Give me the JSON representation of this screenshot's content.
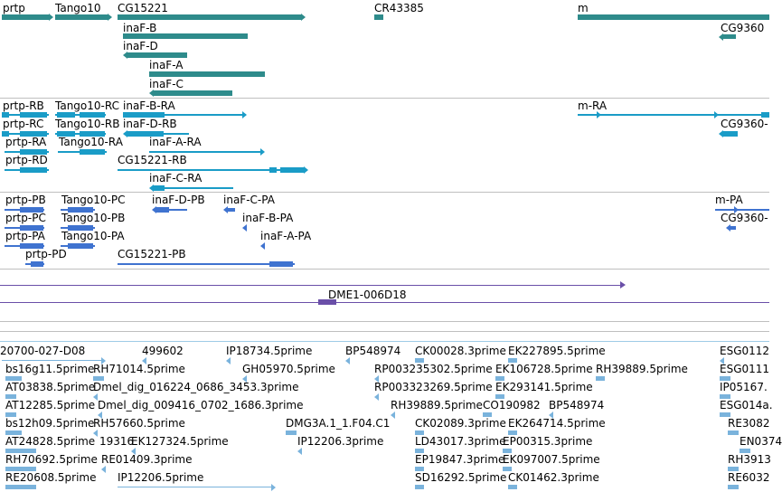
{
  "colors": {
    "gene": "#2e8b8b",
    "transcript": "#1a9cc7",
    "protein": "#3f73d0",
    "clone": "#6a4fa8",
    "est": "#7ab3dc"
  },
  "genes": [
    "prtp",
    "Tango10",
    "CG15221",
    "CR43385",
    "m",
    "inaF-B",
    "inaF-D",
    "inaF-A",
    "inaF-C",
    "CG9360"
  ],
  "transcripts": [
    "prtp-RB",
    "Tango10-RC",
    "inaF-B-RA",
    "m-RA",
    "prtp-RC",
    "Tango10-RB",
    "inaF-D-RB",
    "CG9360-",
    "prtp-RA",
    "Tango10-RA",
    "inaF-A-RA",
    "prtp-RD",
    "CG15221-RB",
    "inaF-C-RA"
  ],
  "proteins": [
    "prtp-PB",
    "Tango10-PC",
    "inaF-D-PB",
    "inaF-C-PA",
    "m-PA",
    "prtp-PC",
    "Tango10-PB",
    "inaF-B-PA",
    "CG9360-",
    "prtp-PA",
    "Tango10-PA",
    "inaF-A-PA",
    "prtp-PD",
    "CG15221-PB"
  ],
  "clone": "DME1-006D18",
  "ests": [
    "20700-027-D08",
    "499602",
    "IP18734.5prime",
    "BP548974",
    "CK00028.3prime",
    "EK227895.5prime",
    "ESG0112",
    "bs16g11.5prime",
    "RH71014.5prime",
    "GH05970.5prime",
    "RP003235302.5prime",
    "EK106728.5prime",
    "RH39889.5prime",
    "ESG0111",
    "AT03838.5prime",
    "Dmel_dig_016224_0686_3453.3prime",
    "RP003323269.5prime",
    "EK293141.5prime",
    "IP05167.",
    "AT12285.5prime",
    "Dmel_dig_009416_0702_1686.3prime",
    "RH39889.5prime",
    "CO190982",
    "BP548974",
    "ESG014a.",
    "bs12h09.5prime",
    "RH57660.5prime",
    "DMG3A.1_1.F04.C1",
    "CK02089.3prime",
    "EK264714.5prime",
    "RE3082",
    "AT24828.5prime",
    "19316",
    "EK127324.5prime",
    "IP12206.3prime",
    "LD43017.3prime",
    "EP00315.3prime",
    "EN0374",
    "RH70692.5prime",
    "RE01409.3prime",
    "EP19847.3prime",
    "EK097007.5prime",
    "RH3913",
    "RE20608.5prime",
    "IP12206.5prime",
    "SD16292.5prime",
    "CK01462.3prime",
    "RE6032"
  ]
}
